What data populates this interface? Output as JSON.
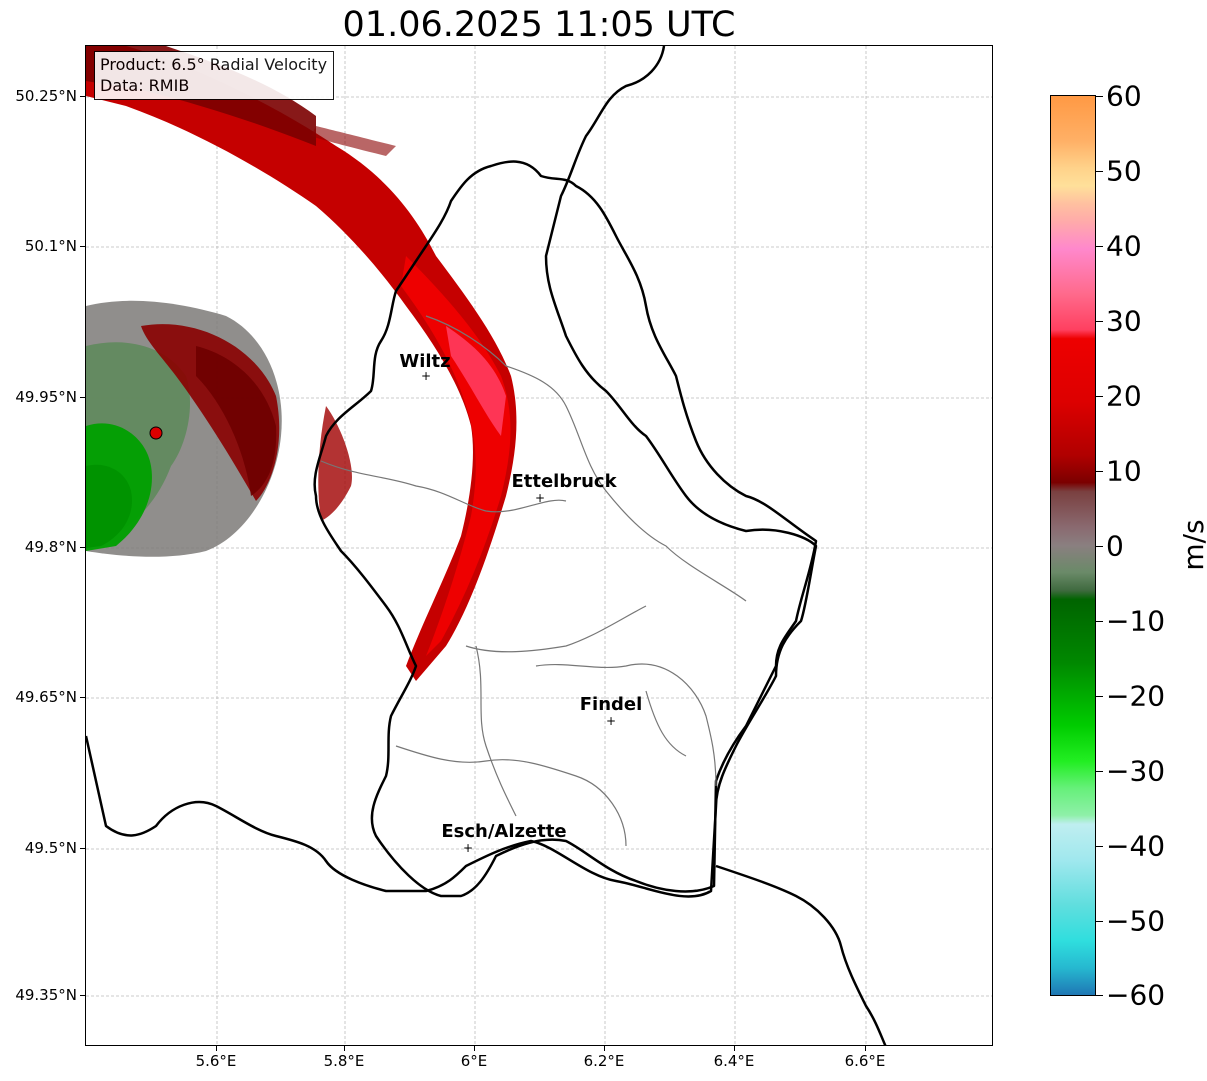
{
  "title": "01.06.2025 11:05 UTC",
  "info": {
    "product": "Product: 6.5° Radial Velocity",
    "data": "Data: RMIB"
  },
  "axes": {
    "lat_labels": [
      "50.25°N",
      "50.1°N",
      "49.95°N",
      "49.8°N",
      "49.65°N",
      "49.5°N",
      "49.35°N"
    ],
    "lon_labels": [
      "5.6°E",
      "5.8°E",
      "6°E",
      "6.2°E",
      "6.4°E",
      "6.6°E"
    ]
  },
  "cities": [
    {
      "name": "Wiltz"
    },
    {
      "name": "Ettelbruck"
    },
    {
      "name": "Findel"
    },
    {
      "name": "Esch/Alzette"
    }
  ],
  "colorbar": {
    "unit": "m/s",
    "tick_labels": [
      "60",
      "50",
      "40",
      "30",
      "20",
      "10",
      "0",
      "−10",
      "−20",
      "−30",
      "−40",
      "−50",
      "−60"
    ],
    "range": [
      -60,
      60
    ],
    "colors": {
      "neg_blue": "#1f77b4",
      "neg_cyan": "#2fdede",
      "neg_lightcyan": "#bfeef0",
      "neg_lightgreen": "#8ef0a8",
      "neg_green": "#00dd00",
      "neg_darkgreen": "#006400",
      "zero_grey": "#8a7f80",
      "pos_darkred": "#7b0000",
      "pos_red": "#ee0000",
      "pos_pink": "#ff88cc",
      "pos_orange": "#ff9944"
    }
  },
  "legend": {
    "radar_site": "red-dot"
  }
}
